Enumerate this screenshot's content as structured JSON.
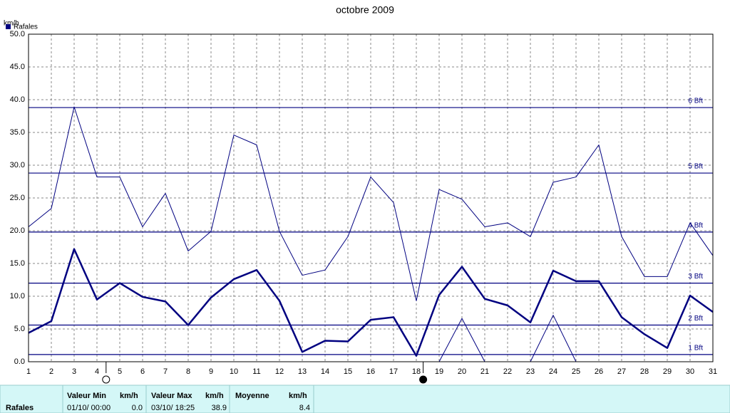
{
  "chart_data": {
    "type": "line",
    "title": "octobre 2009",
    "y_label": "km/h",
    "x": [
      1,
      2,
      3,
      4,
      5,
      6,
      7,
      8,
      9,
      10,
      11,
      12,
      13,
      14,
      15,
      16,
      17,
      18,
      19,
      20,
      21,
      22,
      23,
      24,
      25,
      26,
      27,
      28,
      29,
      30,
      31
    ],
    "xlim": [
      1,
      31
    ],
    "xticks": [
      1,
      2,
      3,
      4,
      5,
      6,
      7,
      8,
      9,
      10,
      11,
      12,
      13,
      14,
      15,
      16,
      17,
      18,
      19,
      20,
      21,
      22,
      23,
      24,
      25,
      26,
      27,
      28,
      29,
      30,
      31
    ],
    "ylim": [
      0,
      50
    ],
    "yticks": [
      {
        "value": 0,
        "label": "0.0"
      },
      {
        "value": 5,
        "label": "5.0"
      },
      {
        "value": 10,
        "label": "10.0"
      },
      {
        "value": 15,
        "label": "15.0"
      },
      {
        "value": 20,
        "label": "20.0"
      },
      {
        "value": 25,
        "label": "25.0"
      },
      {
        "value": 30,
        "label": "30.0"
      },
      {
        "value": 35,
        "label": "35.0"
      },
      {
        "value": 40,
        "label": "40.0"
      },
      {
        "value": 45,
        "label": "45.0"
      },
      {
        "value": 50,
        "label": "50.0"
      }
    ],
    "grid": true,
    "series": [
      {
        "name": "Rafales",
        "color": "#000080",
        "width": 1,
        "values": [
          20.6,
          23.4,
          38.9,
          28.2,
          28.2,
          20.6,
          25.7,
          16.9,
          19.9,
          34.6,
          33.1,
          19.9,
          13.2,
          14.0,
          19.1,
          28.2,
          24.3,
          9.3,
          26.3,
          24.8,
          20.6,
          21.2,
          19.1,
          27.4,
          28.2,
          33.1,
          19.1,
          13.0,
          13.0,
          21.2,
          16.2
        ]
      },
      {
        "color": "#000080",
        "width": 2.5,
        "values": [
          4.4,
          6.2,
          17.2,
          9.5,
          12.0,
          9.9,
          9.2,
          5.6,
          9.8,
          12.6,
          14.0,
          9.3,
          1.5,
          3.2,
          3.1,
          6.4,
          6.8,
          0.9,
          10.2,
          14.5,
          9.6,
          8.6,
          6.0,
          13.9,
          12.3,
          12.3,
          6.8,
          4.2,
          2.1,
          10.1,
          7.6
        ]
      },
      {
        "color": "#000080",
        "width": 1,
        "values": [
          0,
          0,
          0,
          0,
          0,
          0,
          0,
          0,
          0,
          0,
          0,
          0,
          0,
          0,
          0,
          0,
          0,
          0,
          0,
          6.6,
          0,
          0,
          0,
          7.1,
          0,
          0,
          0,
          0,
          0,
          0,
          0
        ]
      }
    ],
    "reference_lines": [
      {
        "value": 1.1,
        "label": "1 Bft"
      },
      {
        "value": 5.6,
        "label": "2 Bft"
      },
      {
        "value": 12.0,
        "label": "3 Bft"
      },
      {
        "value": 19.8,
        "label": "4 Bft"
      },
      {
        "value": 28.8,
        "label": "5 Bft"
      },
      {
        "value": 38.8,
        "label": "6 Bft"
      }
    ],
    "markers": [
      {
        "x": 4.4,
        "fill": "none"
      },
      {
        "x": 18.3,
        "fill": "#000"
      }
    ]
  },
  "table": {
    "row_label": "Rafales",
    "columns": [
      {
        "header": "Valeur Min",
        "unit": "km/h",
        "when": "01/10/ 00:00",
        "value": "0.0"
      },
      {
        "header": "Valeur Max",
        "unit": "km/h",
        "when": "03/10/ 18:25",
        "value": "38.9"
      },
      {
        "header": "Moyenne",
        "unit": "km/h",
        "value": "8.4"
      }
    ]
  }
}
